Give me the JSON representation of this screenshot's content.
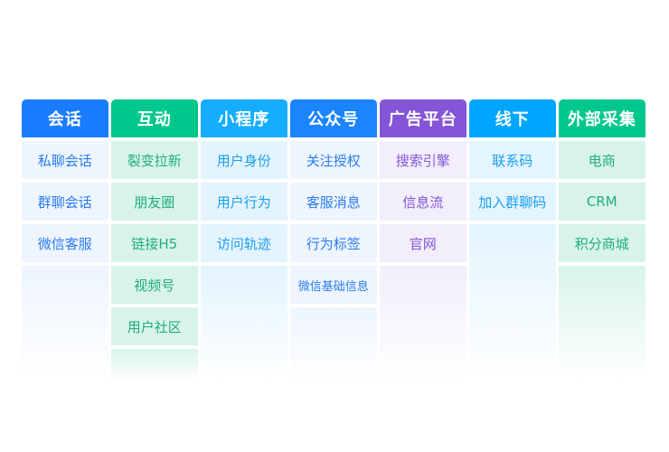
{
  "columns": [
    {
      "title": "会话",
      "header_color": "#1a7cff",
      "cell_bg": "#eef5ff",
      "text_color": "#2b7cf0",
      "items": [
        "私聊会话",
        "群聊会话",
        "微信客服"
      ]
    },
    {
      "title": "互动",
      "header_color": "#00c78c",
      "cell_bg": "#d8f4ea",
      "text_color": "#1fae7a",
      "items": [
        "裂变拉新",
        "朋友圈",
        "链接H5",
        "视频号",
        "用户社区"
      ]
    },
    {
      "title": "小程序",
      "header_color": "#14adff",
      "cell_bg": "#e3f4ff",
      "text_color": "#1a9ff0",
      "items": [
        "用户身份",
        "用户行为",
        "访问轨迹"
      ]
    },
    {
      "title": "公众号",
      "header_color": "#1a85ff",
      "cell_bg": "#eef5ff",
      "text_color": "#2b7cf0",
      "items": [
        "关注授权",
        "客服消息",
        "行为标签",
        "微信基础信息"
      ]
    },
    {
      "title": "广告平台",
      "header_color": "#8455d6",
      "cell_bg": "#f2eefc",
      "text_color": "#8455d6",
      "items": [
        "搜索引擎",
        "信息流",
        "官网"
      ]
    },
    {
      "title": "线下",
      "header_color": "#00a5ff",
      "cell_bg": "#e3f5ff",
      "text_color": "#1a9ff0",
      "items": [
        "联系码",
        "加入群聊码"
      ]
    },
    {
      "title": "外部采集",
      "header_color": "#00c78c",
      "cell_bg": "#d8f4ea",
      "text_color": "#1fae7a",
      "items": [
        "电商",
        "CRM",
        "积分商城"
      ]
    }
  ]
}
